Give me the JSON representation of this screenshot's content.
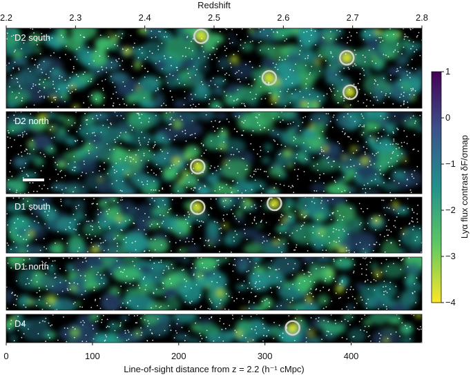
{
  "chart_data": {
    "type": "heatmap",
    "top_axis": {
      "title": "Redshift",
      "ticks": [
        "2.2",
        "2.3",
        "2.4",
        "2.5",
        "2.6",
        "2.7",
        "2.8"
      ],
      "range": [
        2.2,
        2.8
      ]
    },
    "bottom_axis": {
      "title": "Line-of-sight distance from z = 2.2 (h⁻¹ cMpc)",
      "ticks": [
        0,
        100,
        200,
        300,
        400
      ],
      "range": [
        0,
        482
      ]
    },
    "colorbar": {
      "title": "Lyα flux contrast δF/σmap",
      "ticks": [
        "1",
        "0",
        "−1",
        "−2",
        "−3",
        "−4"
      ],
      "range": [
        -4,
        1
      ],
      "colors": [
        "#fde725",
        "#5ec962",
        "#21918c",
        "#3b528b",
        "#440154"
      ]
    },
    "panels": [
      {
        "name": "D2 south",
        "highlights": [
          [
            226,
            0.1
          ],
          [
            305,
            0.62
          ],
          [
            395,
            0.37
          ],
          [
            399,
            0.8
          ]
        ]
      },
      {
        "name": "D2 north",
        "highlights": [
          [
            222,
            0.67
          ]
        ]
      },
      {
        "name": "D1 south",
        "highlights": [
          [
            222,
            0.18
          ],
          [
            311,
            0.11
          ]
        ]
      },
      {
        "name": "D1 north",
        "highlights": []
      },
      {
        "name": "D4",
        "highlights": [
          [
            332,
            0.48
          ]
        ]
      }
    ],
    "scale_bar": true,
    "background": "#000000",
    "highlight_color": "#d3d3d3"
  }
}
